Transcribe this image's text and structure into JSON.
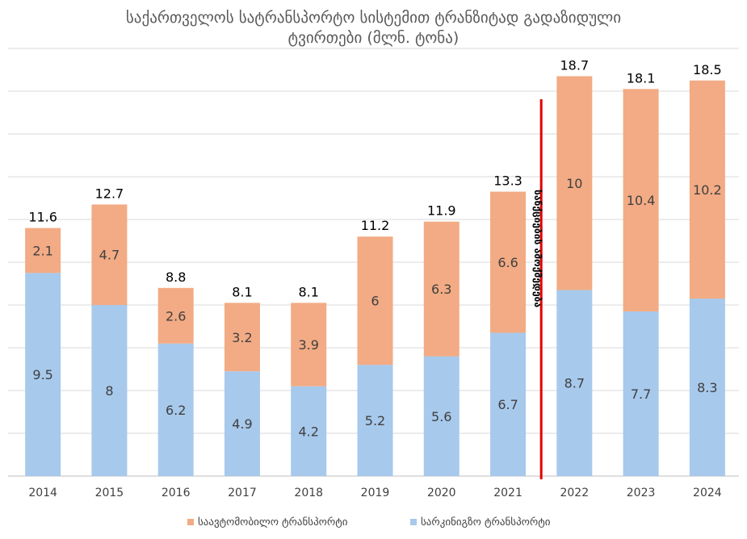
{
  "chart_data": {
    "type": "bar",
    "stacked": true,
    "title_line1": "საქართველოს სატრანსპორტო სისტემით ტრანზიტად გადაზიდული",
    "title_line2": "ტვირთები (მლნ. ტონა)",
    "categories": [
      "2014",
      "2015",
      "2016",
      "2017",
      "2018",
      "2019",
      "2020",
      "2021",
      "2022",
      "2023",
      "2024"
    ],
    "series": [
      {
        "name": "სარკინიგზო ტრანსპორტი",
        "color": "#A7C9EC",
        "values": [
          9.5,
          8,
          6.2,
          4.9,
          4.2,
          5.2,
          5.6,
          6.7,
          8.7,
          7.7,
          8.3
        ]
      },
      {
        "name": "საავტომობილო ტრანსპორტი",
        "color": "#F2AB84",
        "values": [
          2.1,
          4.7,
          2.6,
          3.2,
          3.9,
          6,
          6.3,
          6.6,
          10,
          10.4,
          10.2
        ]
      }
    ],
    "total_labels": [
      "11.6",
      "12.7",
      "8.8",
      "8.1",
      "8.1",
      "11.2",
      "11.9",
      "13.3",
      "18.7",
      "18.1",
      "18.5"
    ],
    "ylim": [
      0,
      20
    ],
    "grid": true,
    "legend_position": "bottom",
    "annotation": {
      "text": "სანქციების ამოქმედება",
      "between": [
        "2021",
        "2022"
      ],
      "color": "#E00000"
    }
  }
}
